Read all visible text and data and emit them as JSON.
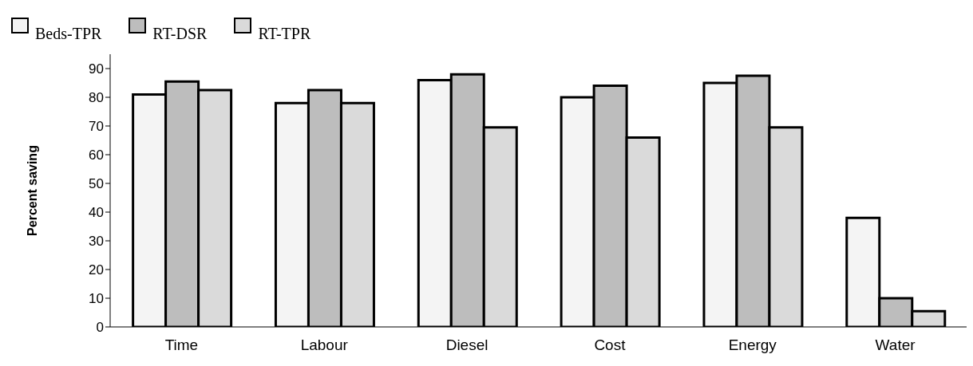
{
  "chart_data": {
    "type": "bar",
    "ylabel": "Percent saving",
    "categories": [
      "Time",
      "Labour",
      "Diesel",
      "Cost",
      "Energy",
      "Water"
    ],
    "series": [
      {
        "name": "Beds-TPR",
        "color": "#f4f4f4",
        "values": [
          81,
          78,
          86,
          80,
          85,
          38
        ]
      },
      {
        "name": "RT-DSR",
        "color": "#bdbdbd",
        "values": [
          85.5,
          82.5,
          88,
          84,
          87.5,
          10
        ]
      },
      {
        "name": "RT-TPR",
        "color": "#dadada",
        "values": [
          82.5,
          78,
          69.5,
          66,
          69.5,
          5.5
        ]
      }
    ],
    "ylim": [
      0,
      95
    ],
    "yticks": [
      0,
      10,
      20,
      30,
      40,
      50,
      60,
      70,
      80,
      90
    ],
    "grid": false,
    "legend": "top left"
  }
}
